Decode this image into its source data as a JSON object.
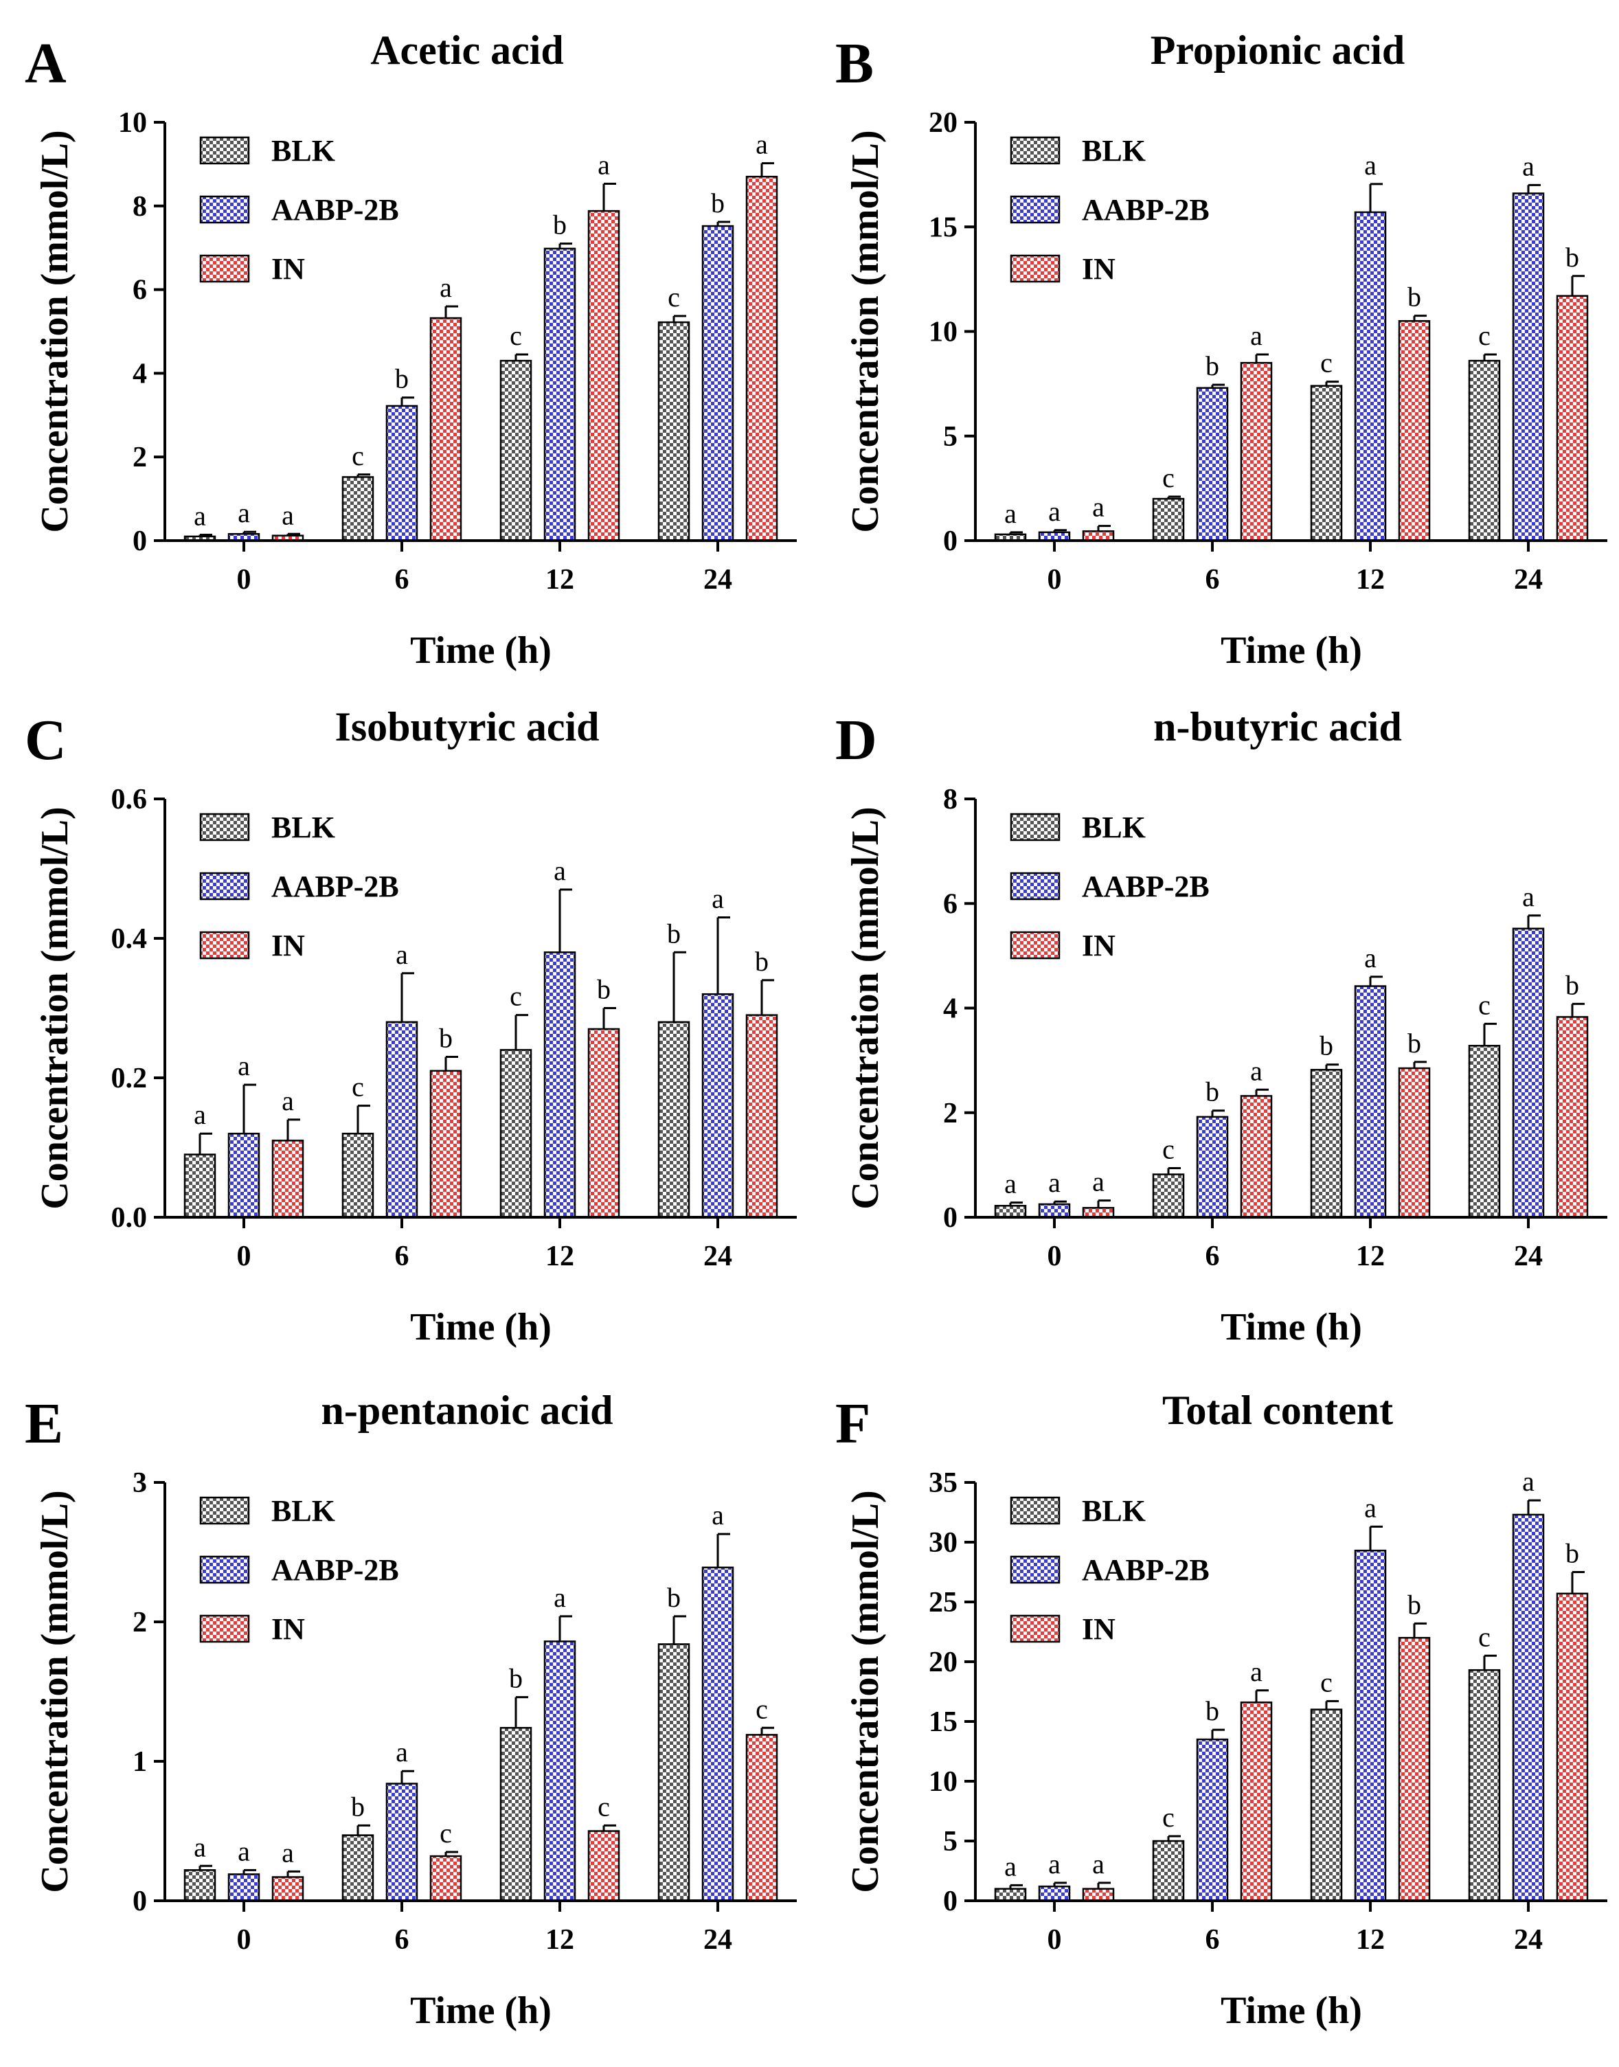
{
  "legend": {
    "series": [
      {
        "name": "BLK",
        "color": "#555555"
      },
      {
        "name": "AABP-2B",
        "color": "#3b3bd8"
      },
      {
        "name": "IN",
        "color": "#e83c3c"
      }
    ]
  },
  "chart_data": [
    {
      "type": "bar",
      "panel": "A",
      "title": "Acetic acid",
      "xlabel": "Time (h)",
      "ylabel": "Concentration (mmol/L)",
      "categories": [
        "0",
        "6",
        "12",
        "24"
      ],
      "ylim": [
        0,
        10
      ],
      "yticks": [
        "0",
        "2",
        "4",
        "6",
        "8",
        "10"
      ],
      "series": [
        {
          "name": "BLK",
          "values": [
            0.1,
            1.52,
            4.3,
            5.22
          ],
          "errors": [
            0.04,
            0.06,
            0.15,
            0.15
          ],
          "labels": [
            "a",
            "c",
            "c",
            "c"
          ]
        },
        {
          "name": "AABP-2B",
          "values": [
            0.16,
            3.22,
            6.98,
            7.52
          ],
          "errors": [
            0.05,
            0.2,
            0.12,
            0.1
          ],
          "labels": [
            "a",
            "b",
            "b",
            "b"
          ]
        },
        {
          "name": "IN",
          "values": [
            0.12,
            5.32,
            7.88,
            8.7
          ],
          "errors": [
            0.04,
            0.28,
            0.65,
            0.32
          ],
          "labels": [
            "a",
            "a",
            "a",
            "a"
          ]
        }
      ]
    },
    {
      "type": "bar",
      "panel": "B",
      "title": "Propionic acid",
      "xlabel": "Time (h)",
      "ylabel": "Concentration (mmol/L)",
      "categories": [
        "0",
        "6",
        "12",
        "24"
      ],
      "ylim": [
        0,
        20
      ],
      "yticks": [
        "0",
        "5",
        "10",
        "15",
        "20"
      ],
      "series": [
        {
          "name": "BLK",
          "values": [
            0.3,
            2.0,
            7.4,
            8.6
          ],
          "errors": [
            0.1,
            0.1,
            0.2,
            0.3
          ],
          "labels": [
            "a",
            "c",
            "c",
            "c"
          ]
        },
        {
          "name": "AABP-2B",
          "values": [
            0.4,
            7.3,
            15.7,
            16.6
          ],
          "errors": [
            0.1,
            0.15,
            1.35,
            0.4
          ],
          "labels": [
            "a",
            "b",
            "a",
            "a"
          ]
        },
        {
          "name": "IN",
          "values": [
            0.45,
            8.5,
            10.5,
            11.7
          ],
          "errors": [
            0.25,
            0.4,
            0.25,
            0.95
          ],
          "labels": [
            "a",
            "a",
            "b",
            "b"
          ]
        }
      ]
    },
    {
      "type": "bar",
      "panel": "C",
      "title": "Isobutyric acid",
      "xlabel": "Time (h)",
      "ylabel": "Concentration (mmol/L)",
      "categories": [
        "0",
        "6",
        "12",
        "24"
      ],
      "ylim": [
        0,
        0.6
      ],
      "yticks": [
        "0.0",
        "0.2",
        "0.4",
        "0.6"
      ],
      "series": [
        {
          "name": "BLK",
          "values": [
            0.09,
            0.12,
            0.24,
            0.28
          ],
          "errors": [
            0.03,
            0.04,
            0.05,
            0.1
          ],
          "labels": [
            "a",
            "c",
            "c",
            "b"
          ]
        },
        {
          "name": "AABP-2B",
          "values": [
            0.12,
            0.28,
            0.38,
            0.32
          ],
          "errors": [
            0.07,
            0.07,
            0.09,
            0.11
          ],
          "labels": [
            "a",
            "a",
            "a",
            "a"
          ]
        },
        {
          "name": "IN",
          "values": [
            0.11,
            0.21,
            0.27,
            0.29
          ],
          "errors": [
            0.03,
            0.02,
            0.03,
            0.05
          ],
          "labels": [
            "a",
            "b",
            "b",
            "b"
          ]
        }
      ]
    },
    {
      "type": "bar",
      "panel": "D",
      "title": "n-butyric acid",
      "xlabel": "Time (h)",
      "ylabel": "Concentration (mmol/L)",
      "categories": [
        "0",
        "6",
        "12",
        "24"
      ],
      "ylim": [
        0,
        8
      ],
      "yticks": [
        "0",
        "2",
        "4",
        "6",
        "8"
      ],
      "series": [
        {
          "name": "BLK",
          "values": [
            0.22,
            0.82,
            2.82,
            3.28
          ],
          "errors": [
            0.06,
            0.12,
            0.1,
            0.42
          ],
          "labels": [
            "a",
            "c",
            "b",
            "c"
          ]
        },
        {
          "name": "AABP-2B",
          "values": [
            0.25,
            1.92,
            4.42,
            5.52
          ],
          "errors": [
            0.05,
            0.12,
            0.18,
            0.25
          ],
          "labels": [
            "a",
            "b",
            "a",
            "a"
          ]
        },
        {
          "name": "IN",
          "values": [
            0.18,
            2.32,
            2.85,
            3.83
          ],
          "errors": [
            0.14,
            0.12,
            0.12,
            0.25
          ],
          "labels": [
            "a",
            "a",
            "b",
            "b"
          ]
        }
      ]
    },
    {
      "type": "bar",
      "panel": "E",
      "title": "n-pentanoic acid",
      "xlabel": "Time (h)",
      "ylabel": "Concentration (mmol/L)",
      "categories": [
        "0",
        "6",
        "12",
        "24"
      ],
      "ylim": [
        0,
        3
      ],
      "yticks": [
        "0",
        "1",
        "2",
        "3"
      ],
      "series": [
        {
          "name": "BLK",
          "values": [
            0.22,
            0.47,
            1.24,
            1.84
          ],
          "errors": [
            0.03,
            0.07,
            0.22,
            0.2
          ],
          "labels": [
            "a",
            "b",
            "b",
            "b"
          ]
        },
        {
          "name": "AABP-2B",
          "values": [
            0.19,
            0.84,
            1.86,
            2.39
          ],
          "errors": [
            0.03,
            0.09,
            0.18,
            0.24
          ],
          "labels": [
            "a",
            "a",
            "a",
            "a"
          ]
        },
        {
          "name": "IN",
          "values": [
            0.17,
            0.32,
            0.5,
            1.19
          ],
          "errors": [
            0.04,
            0.03,
            0.04,
            0.05
          ],
          "labels": [
            "a",
            "c",
            "c",
            "c"
          ]
        }
      ]
    },
    {
      "type": "bar",
      "panel": "F",
      "title": "Total content",
      "xlabel": "Time (h)",
      "ylabel": "Concentration (mmol/L)",
      "categories": [
        "0",
        "6",
        "12",
        "24"
      ],
      "ylim": [
        0,
        35
      ],
      "yticks": [
        "0",
        "5",
        "10",
        "15",
        "20",
        "25",
        "30",
        "35"
      ],
      "series": [
        {
          "name": "BLK",
          "values": [
            1.0,
            5.0,
            16.0,
            19.3
          ],
          "errors": [
            0.3,
            0.4,
            0.7,
            1.2
          ],
          "labels": [
            "a",
            "c",
            "c",
            "c"
          ]
        },
        {
          "name": "AABP-2B",
          "values": [
            1.2,
            13.5,
            29.3,
            32.3
          ],
          "errors": [
            0.3,
            0.8,
            2.0,
            1.2
          ],
          "labels": [
            "a",
            "b",
            "a",
            "a"
          ]
        },
        {
          "name": "IN",
          "values": [
            1.0,
            16.6,
            22.0,
            25.7
          ],
          "errors": [
            0.5,
            1.0,
            1.2,
            1.8
          ],
          "labels": [
            "a",
            "a",
            "b",
            "b"
          ]
        }
      ]
    }
  ]
}
